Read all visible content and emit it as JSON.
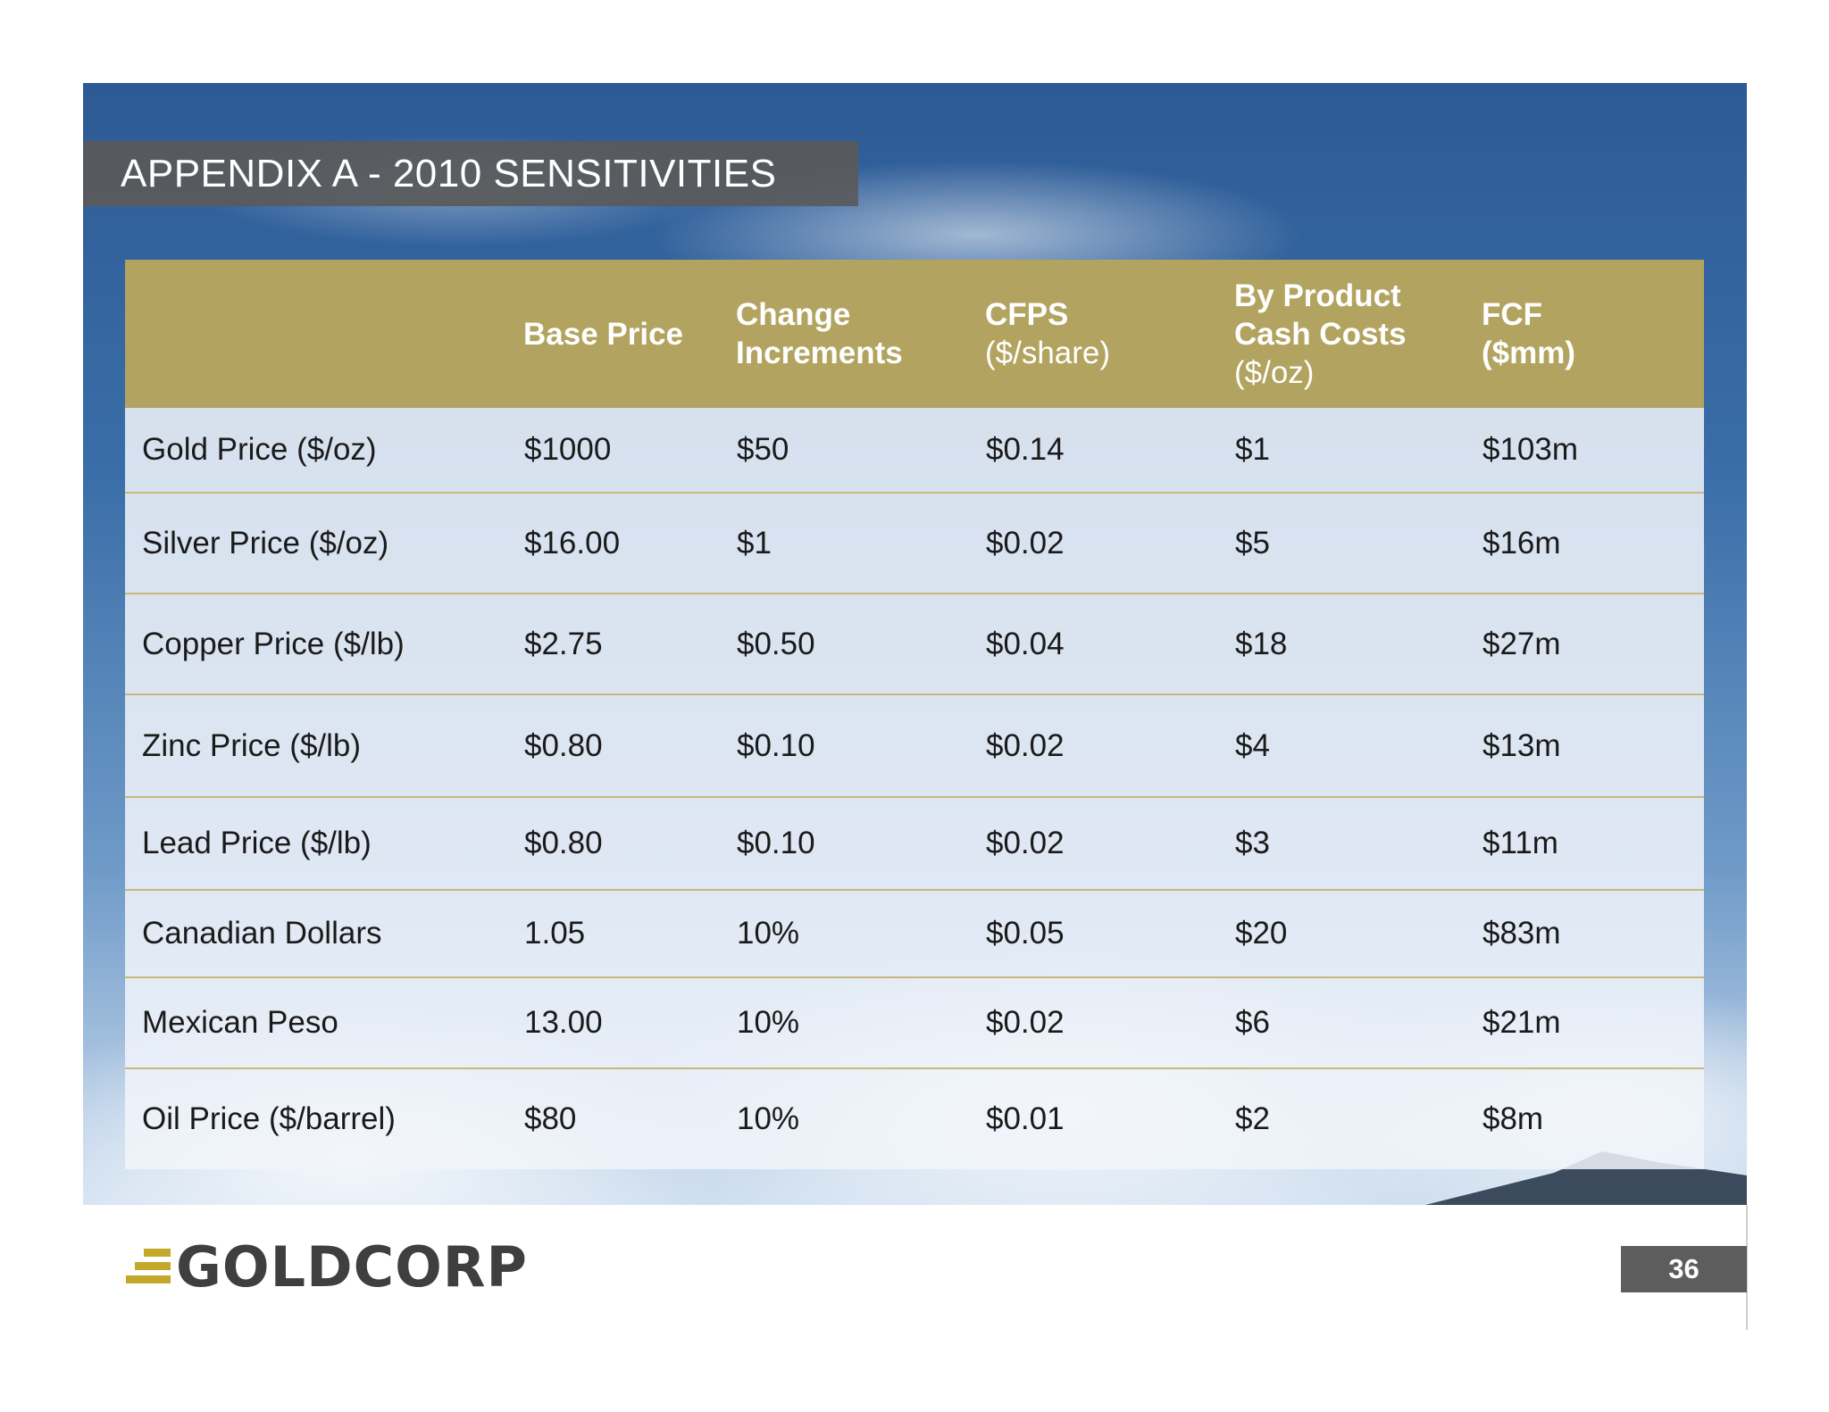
{
  "title": "APPENDIX A - 2010 SENSITIVITIES",
  "table": {
    "headers": [
      {
        "bold": "",
        "light": ""
      },
      {
        "bold": "Base Price",
        "light": ""
      },
      {
        "bold": "Change Increments",
        "light": ""
      },
      {
        "bold": "CFPS",
        "light": "($/share)"
      },
      {
        "bold": "By Product Cash Costs",
        "light": "($/oz)"
      },
      {
        "bold": "FCF ($mm)",
        "light": ""
      }
    ],
    "rows": [
      [
        "Gold Price ($/oz)",
        "$1000",
        "$50",
        "$0.14",
        "$1",
        "$103m"
      ],
      [
        "Silver Price ($/oz)",
        "$16.00",
        "$1",
        "$0.02",
        "$5",
        "$16m"
      ],
      [
        "Copper Price ($/lb)",
        "$2.75",
        "$0.50",
        "$0.04",
        "$18",
        "$27m"
      ],
      [
        "Zinc Price ($/lb)",
        "$0.80",
        "$0.10",
        "$0.02",
        "$4",
        "$13m"
      ],
      [
        "Lead Price ($/lb)",
        "$0.80",
        "$0.10",
        "$0.02",
        "$3",
        "$11m"
      ],
      [
        "Canadian Dollars",
        "1.05",
        "10%",
        "$0.05",
        "$20",
        "$83m"
      ],
      [
        "Mexican Peso",
        "13.00",
        "10%",
        "$0.02",
        "$6",
        "$21m"
      ],
      [
        "Oil Price ($/barrel)",
        "$80",
        "10%",
        "$0.01",
        "$2",
        "$8m"
      ]
    ]
  },
  "logo": {
    "text": "GOLDCORP",
    "icon": "goldcorp-stripes-icon",
    "color": "#c4a82a"
  },
  "page_number": "36",
  "colors": {
    "header": "#b2a460",
    "title_bar": "#5a5a5a",
    "row_rule": "#c9b87a"
  }
}
